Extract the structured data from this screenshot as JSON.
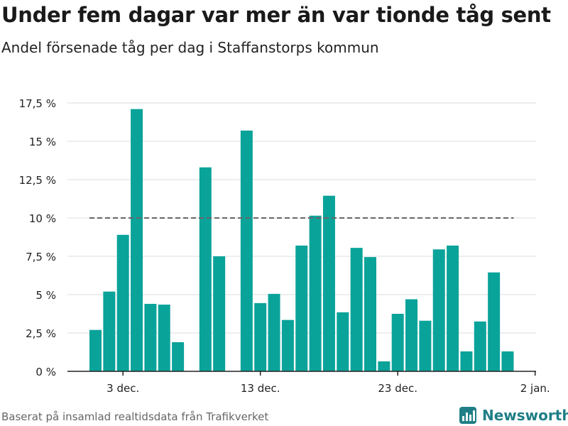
{
  "title": "Under fem dagar var mer än var tionde tåg sent",
  "subtitle": "Andel försenade tåg per dag i Staffanstorps kommun",
  "source": "Baserat på insamlad realtidsdata från Trafikverket",
  "brand": {
    "name": "Newsworthy",
    "icon": "newsworthy-logo-icon",
    "color": "#1f7f86"
  },
  "colors": {
    "bar": "#0aa39a",
    "reference_line": "#666666",
    "grid": "#dddddd",
    "axis": "#222222"
  },
  "chart_data": {
    "type": "bar",
    "x_type": "date",
    "x_start": "2023-12-01",
    "ylim": [
      0,
      17.5
    ],
    "y_ticks": [
      {
        "value": 0,
        "label": "0 %"
      },
      {
        "value": 2.5,
        "label": "2,5 %"
      },
      {
        "value": 5,
        "label": "5 %"
      },
      {
        "value": 7.5,
        "label": "7,5 %"
      },
      {
        "value": 10,
        "label": "10 %"
      },
      {
        "value": 12.5,
        "label": "12,5 %"
      },
      {
        "value": 15,
        "label": "15 %"
      },
      {
        "value": 17.5,
        "label": "17,5 %"
      }
    ],
    "x_ticks": [
      {
        "date": "2023-12-03",
        "label": "3 dec."
      },
      {
        "date": "2023-12-13",
        "label": "13 dec."
      },
      {
        "date": "2023-12-23",
        "label": "23 dec."
      },
      {
        "date": "2024-01-02",
        "label": "2 jan."
      }
    ],
    "dates": [
      "2023-12-01",
      "2023-12-02",
      "2023-12-03",
      "2023-12-04",
      "2023-12-05",
      "2023-12-06",
      "2023-12-07",
      "2023-12-08",
      "2023-12-09",
      "2023-12-10",
      "2023-12-11",
      "2023-12-12",
      "2023-12-13",
      "2023-12-14",
      "2023-12-15",
      "2023-12-16",
      "2023-12-17",
      "2023-12-18",
      "2023-12-19",
      "2023-12-20",
      "2023-12-21",
      "2023-12-22",
      "2023-12-23",
      "2023-12-24",
      "2023-12-25",
      "2023-12-26",
      "2023-12-27",
      "2023-12-28",
      "2023-12-29",
      "2023-12-30",
      "2023-12-31"
    ],
    "values": [
      2.7,
      5.2,
      8.9,
      17.1,
      4.4,
      4.35,
      1.9,
      0,
      13.3,
      7.5,
      0,
      15.7,
      4.45,
      5.05,
      3.35,
      8.2,
      10.15,
      11.45,
      3.85,
      8.05,
      7.45,
      0.65,
      3.75,
      4.7,
      3.3,
      7.95,
      8.2,
      1.3,
      3.25,
      6.45,
      1.3
    ],
    "reference_line": {
      "value": 10,
      "style": "dashed"
    },
    "grid": true
  }
}
